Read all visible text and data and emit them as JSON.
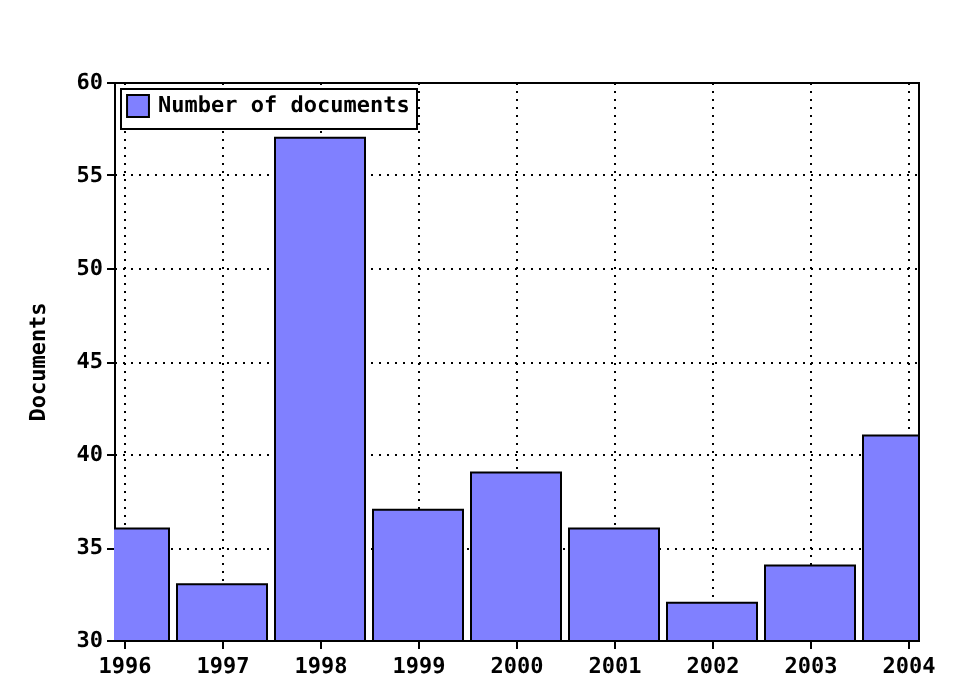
{
  "chart_data": {
    "type": "bar",
    "ylabel": "Documents",
    "x": [
      1996,
      1997,
      1998,
      1999,
      2000,
      2001,
      2002,
      2003,
      2004
    ],
    "series": [
      {
        "name": "Number of documents",
        "color": "#8080ff",
        "values": [
          36,
          33,
          57,
          37,
          39,
          36,
          32,
          34,
          41
        ]
      }
    ],
    "xlim": [
      1996,
      2004
    ],
    "xticks": [
      1996,
      1997,
      1998,
      1999,
      2000,
      2001,
      2002,
      2003,
      2004
    ],
    "ylim": [
      30,
      60
    ],
    "yticks": [
      30,
      35,
      40,
      45,
      50,
      55,
      60
    ],
    "grid": true,
    "legend": "top left"
  }
}
